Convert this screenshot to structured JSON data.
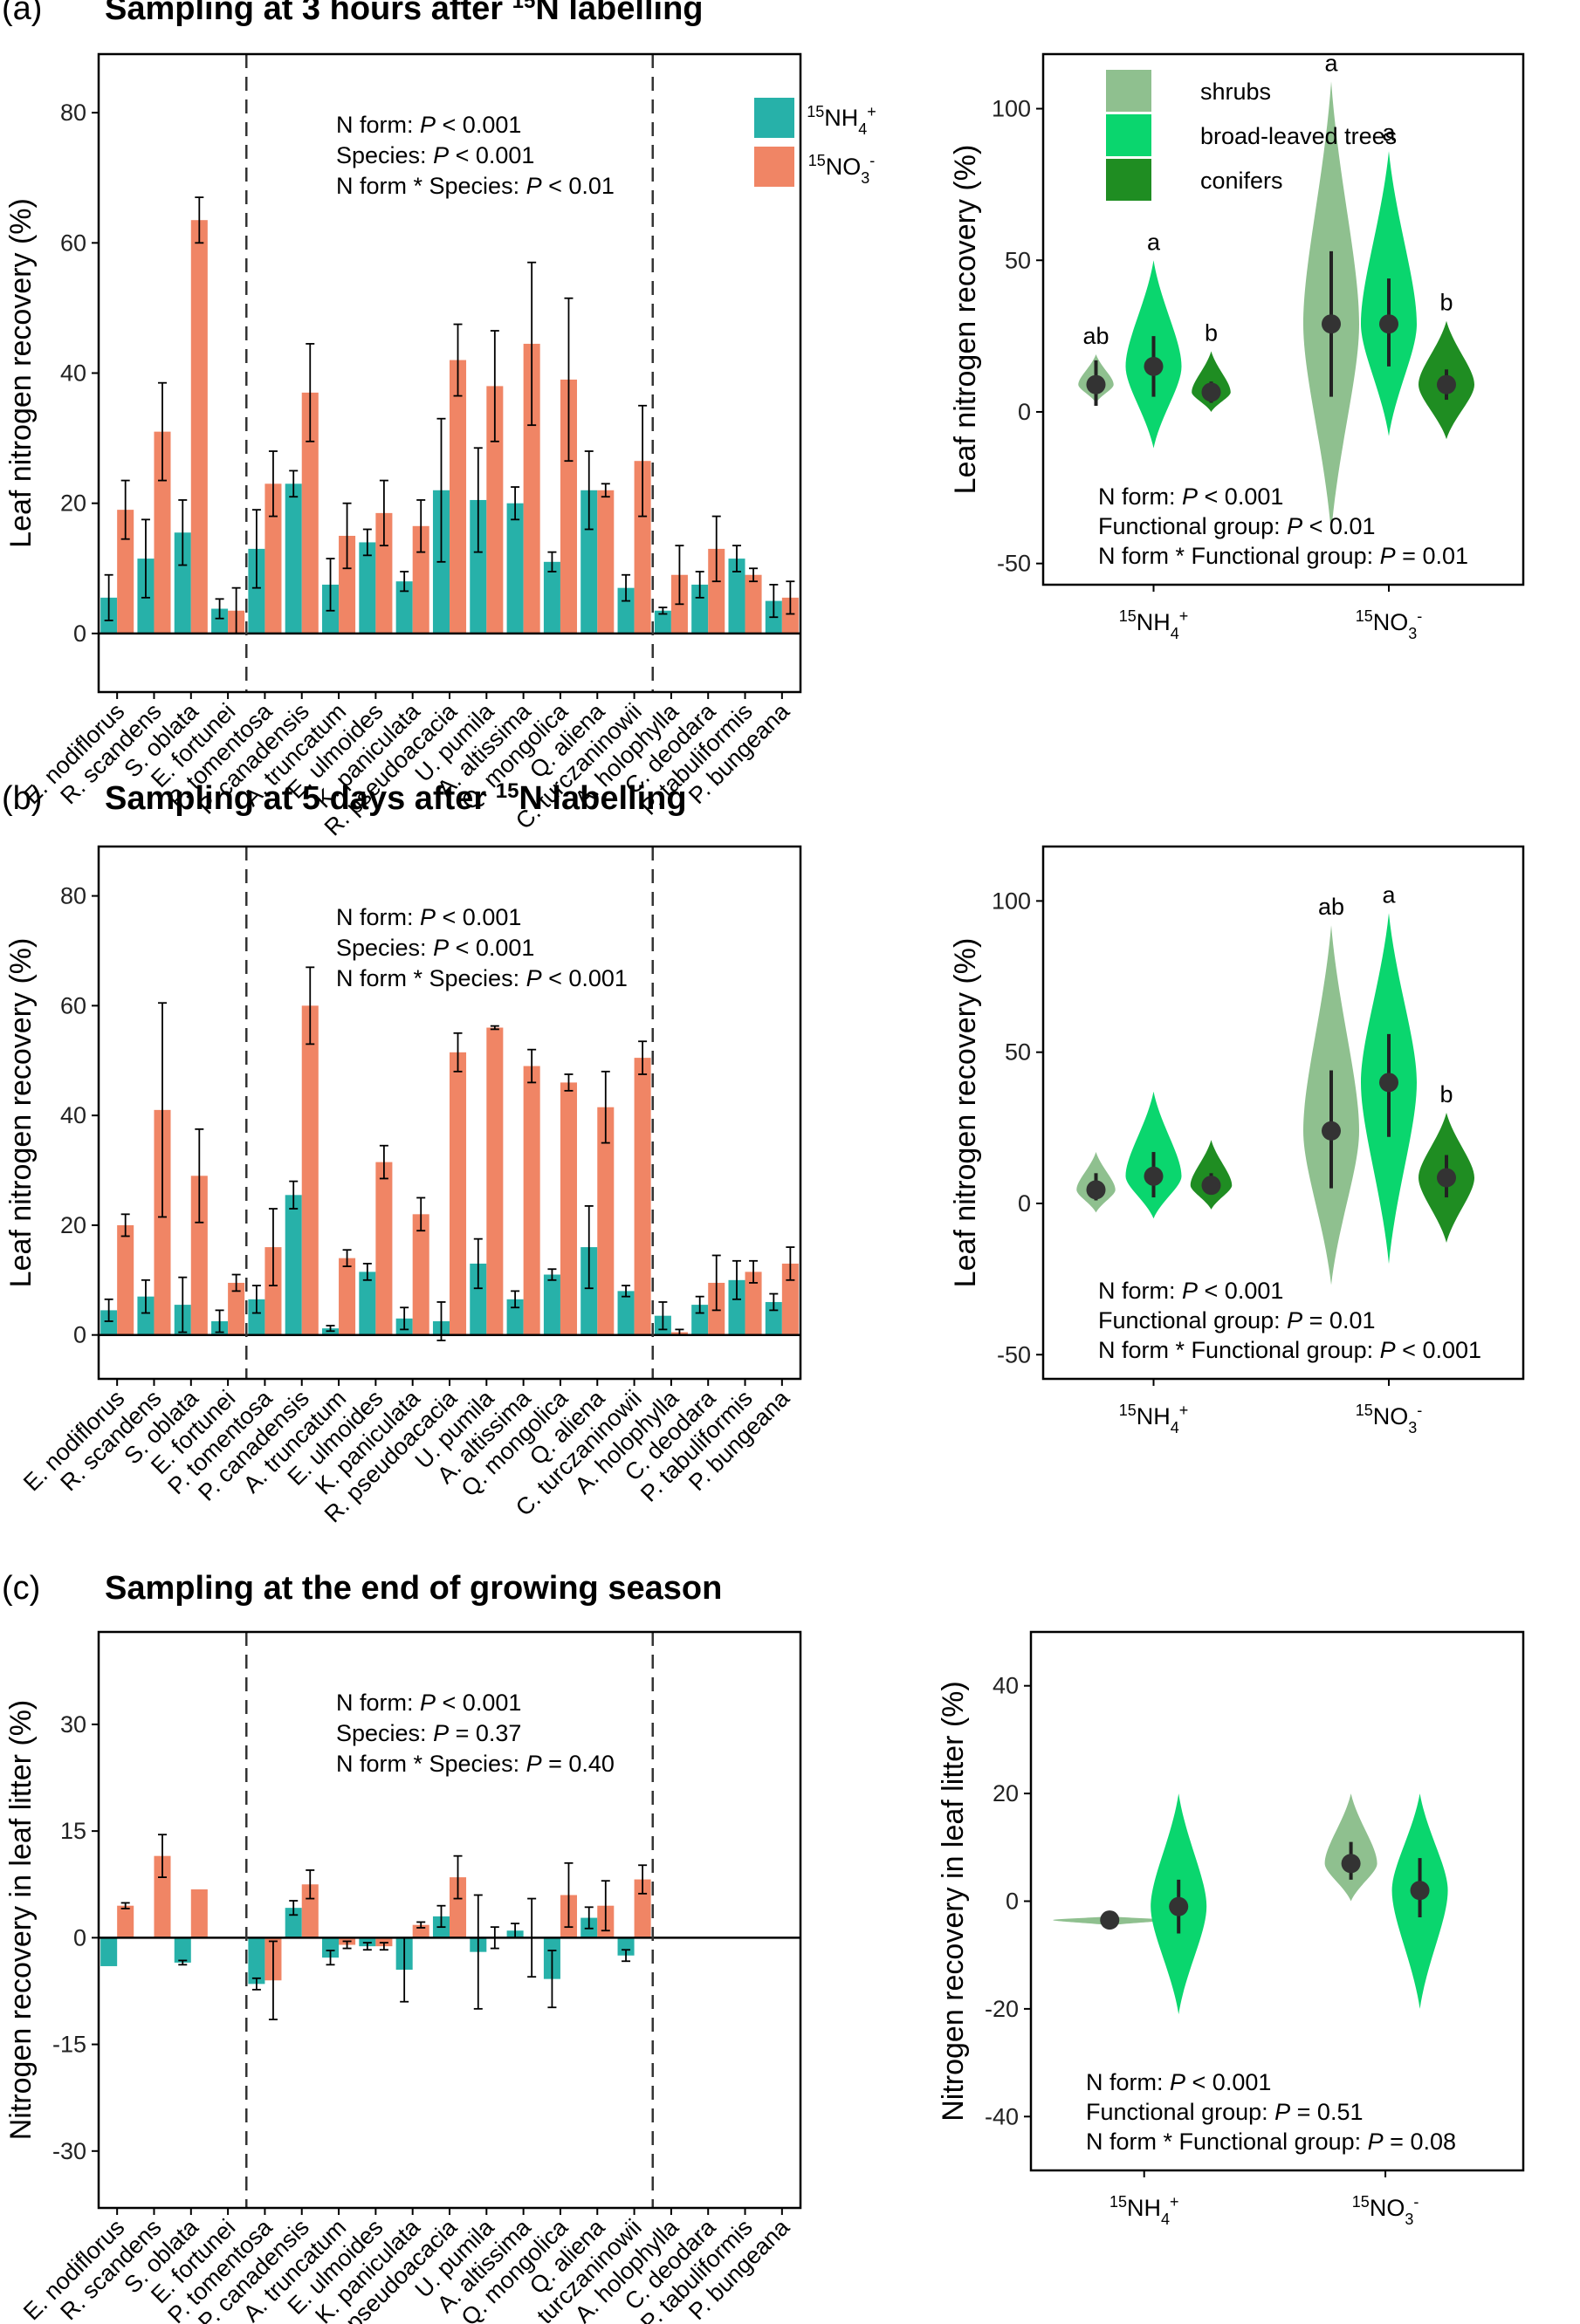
{
  "colors": {
    "nh4": "#27b1a9",
    "no3": "#f08565",
    "shrubs": "#8fc08f",
    "broadleaved": "#0ad66e",
    "conifers": "#1f8d22",
    "median_point": "#333333"
  },
  "species": [
    "E. nodiflorus",
    "R. scandens",
    "S. oblata",
    "E. fortunei",
    "P. tomentosa",
    "P. canadensis",
    "A. truncatum",
    "E. ulmoides",
    "K. paniculata",
    "R. pseudoacacia",
    "U. pumila",
    "A. altissima",
    "Q. mongolica",
    "Q. aliena",
    "C. turczaninowii",
    "A. holophylla",
    "C. deodara",
    "P. tabuliformis",
    "P. bungeana"
  ],
  "nform_labels": [
    {
      "iso": "15",
      "base": "NH",
      "sub": "4",
      "sup": "+"
    },
    {
      "iso": "15",
      "base": "NO",
      "sub": "3",
      "sup": "-"
    }
  ],
  "legend_groups": [
    "shrubs",
    "broad-leaved trees",
    "conifers"
  ],
  "panels": [
    {
      "label": "(a)",
      "title_main": "Sampling at 3 hours after ",
      "title_iso": "15",
      "title_rest": "N labelling",
      "ylabel": "Leaf nitrogen recovery (%)",
      "show_legend": true,
      "bar_stats": [
        {
          "label": "N form: ",
          "p": "P",
          "value": " < 0.001"
        },
        {
          "label": "Species: ",
          "p": "P",
          "value": " < 0.001"
        },
        {
          "label": "N form * Species: ",
          "p": "P",
          "value": " < 0.01"
        }
      ],
      "violin_stats": [
        {
          "label": "N form: ",
          "p": "P",
          "value": " < 0.001"
        },
        {
          "label": "Functional group: ",
          "p": "P",
          "value": " < 0.01"
        },
        {
          "label": "N form * Functional group: ",
          "p": "P",
          "value": " = 0.01"
        }
      ]
    },
    {
      "label": "(b)",
      "title_main": "Sampling at 5 days after ",
      "title_iso": "15",
      "title_rest": "N labelling",
      "ylabel": "Leaf nitrogen recovery (%)",
      "show_legend": false,
      "bar_stats": [
        {
          "label": "N form: ",
          "p": "P",
          "value": " < 0.001"
        },
        {
          "label": "Species: ",
          "p": "P",
          "value": " < 0.001"
        },
        {
          "label": "N form * Species: ",
          "p": "P",
          "value": " < 0.001"
        }
      ],
      "violin_stats": [
        {
          "label": "N form: ",
          "p": "P",
          "value": " < 0.001"
        },
        {
          "label": "Functional group: ",
          "p": "P",
          "value": " = 0.01"
        },
        {
          "label": "N form * Functional group: ",
          "p": "P",
          "value": " < 0.001"
        }
      ]
    },
    {
      "label": "(c)",
      "title_main": "Sampling at the end of growing season",
      "title_iso": "",
      "title_rest": "",
      "ylabel": "Nitrogen recovery in leaf litter (%)",
      "show_legend": false,
      "bar_stats": [
        {
          "label": "N form: ",
          "p": "P",
          "value": " < 0.001"
        },
        {
          "label": "Species: ",
          "p": "P",
          "value": " = 0.37"
        },
        {
          "label": "N form * Species: ",
          "p": "P",
          "value": " = 0.40"
        }
      ],
      "violin_stats": [
        {
          "label": "N form: ",
          "p": "P",
          "value": " < 0.001"
        },
        {
          "label": "Functional group: ",
          "p": "P",
          "value": " = 0.51"
        },
        {
          "label": "N form * Functional group: ",
          "p": "P",
          "value": " = 0.08"
        }
      ]
    }
  ],
  "chart_data": [
    {
      "type": "bar",
      "panel": "(a)",
      "categories": [
        "E. nodiflorus",
        "R. scandens",
        "S. oblata",
        "E. fortunei",
        "P. tomentosa",
        "P. canadensis",
        "A. truncatum",
        "E. ulmoides",
        "K. paniculata",
        "R. pseudoacacia",
        "U. pumila",
        "A. altissima",
        "Q. mongolica",
        "Q. aliena",
        "C. turczaninowii",
        "A. holophylla",
        "C. deodara",
        "P. tabuliformis",
        "P. bungeana"
      ],
      "ylabel": "Leaf nitrogen recovery (%)",
      "ylim": [
        -9,
        89
      ],
      "yticks": [
        0,
        20,
        40,
        60,
        80
      ],
      "group_dividers_after": [
        4,
        15
      ],
      "series": [
        {
          "name": "15NH4+",
          "values": [
            5.5,
            11.5,
            15.5,
            3.8,
            13,
            23,
            7.5,
            14,
            8,
            22,
            20.5,
            20,
            11,
            22,
            7,
            3.5,
            7.5,
            11.5,
            5
          ],
          "errors": [
            3.5,
            6,
            5,
            1.5,
            6,
            2,
            4,
            2,
            1.5,
            11,
            8,
            2.5,
            1.5,
            6,
            2,
            0.5,
            2,
            2,
            2.5
          ]
        },
        {
          "name": "15NO3-",
          "values": [
            19,
            31,
            63.5,
            3.5,
            23,
            37,
            15,
            18.5,
            16.5,
            42,
            38,
            44.5,
            39,
            22,
            26.5,
            9,
            13,
            9,
            5.5
          ],
          "errors": [
            4.5,
            7.5,
            3.5,
            3.5,
            5,
            7.5,
            5,
            5,
            4,
            5.5,
            8.5,
            12.5,
            12.5,
            1,
            8.5,
            4.5,
            5,
            1,
            2.5
          ]
        }
      ]
    },
    {
      "type": "bar",
      "panel": "(b)",
      "categories": [
        "E. nodiflorus",
        "R. scandens",
        "S. oblata",
        "E. fortunei",
        "P. tomentosa",
        "P. canadensis",
        "A. truncatum",
        "E. ulmoides",
        "K. paniculata",
        "R. pseudoacacia",
        "U. pumila",
        "A. altissima",
        "Q. mongolica",
        "Q. aliena",
        "C. turczaninowii",
        "A. holophylla",
        "C. deodara",
        "P. tabuliformis",
        "P. bungeana"
      ],
      "ylabel": "Leaf nitrogen recovery (%)",
      "ylim": [
        -8,
        89
      ],
      "yticks": [
        0,
        20,
        40,
        60,
        80
      ],
      "group_dividers_after": [
        4,
        15
      ],
      "series": [
        {
          "name": "15NH4+",
          "values": [
            4.5,
            7,
            5.5,
            2.5,
            6.5,
            25.5,
            1.2,
            11.5,
            3,
            2.5,
            13,
            6.5,
            11,
            16,
            8,
            3.5,
            5.5,
            10,
            6
          ],
          "errors": [
            2,
            3,
            5,
            2,
            2.5,
            2.5,
            0.5,
            1.5,
            2,
            3.5,
            4.5,
            1.5,
            1,
            7.5,
            1,
            2.5,
            1.5,
            3.5,
            1.5
          ]
        },
        {
          "name": "15NO3-",
          "values": [
            20,
            41,
            29,
            9.5,
            16,
            60,
            14,
            31.5,
            22,
            51.5,
            56,
            49,
            46,
            41.5,
            50.5,
            0.5,
            9.5,
            11.5,
            13
          ],
          "errors": [
            2,
            19.5,
            8.5,
            1.5,
            7,
            7,
            1.5,
            3,
            3,
            3.5,
            0.3,
            3,
            1.5,
            6.5,
            3,
            0.5,
            5,
            2,
            3
          ]
        }
      ]
    },
    {
      "type": "bar",
      "panel": "(c)",
      "categories": [
        "E. nodiflorus",
        "R. scandens",
        "S. oblata",
        "E. fortunei",
        "P. tomentosa",
        "P. canadensis",
        "A. truncatum",
        "E. ulmoides",
        "K. paniculata",
        "R. pseudoacacia",
        "U. pumila",
        "A. altissima",
        "Q. mongolica",
        "Q. aliena",
        "C. turczaninowii",
        "A. holophylla",
        "C. deodara",
        "P. tabuliformis",
        "P. bungeana"
      ],
      "ylabel": "Nitrogen recovery in leaf litter (%)",
      "ylim": [
        -38,
        43
      ],
      "yticks": [
        -30,
        -15,
        0,
        15,
        30
      ],
      "group_dividers_after": [
        4,
        15
      ],
      "series": [
        {
          "name": "15NH4+",
          "values": [
            -4,
            null,
            -3.5,
            null,
            -6.5,
            4.2,
            -2.8,
            -1.2,
            -4.5,
            3,
            -2,
            1,
            -5.8,
            2.8,
            -2.5,
            null,
            null,
            null,
            null
          ],
          "errors": [
            0,
            0,
            0.3,
            0,
            0.8,
            1,
            1,
            0.5,
            4.5,
            1.5,
            8,
            1,
            4,
            1.5,
            0.8,
            0,
            0,
            0,
            0
          ]
        },
        {
          "name": "15NO3-",
          "values": [
            4.5,
            11.5,
            6.8,
            null,
            -6,
            7.5,
            -1,
            -1.2,
            1.8,
            8.5,
            0,
            0,
            6,
            4.5,
            8.2,
            null,
            null,
            null,
            null
          ],
          "errors": [
            0.4,
            3,
            0,
            0,
            5.5,
            2,
            0.5,
            0.5,
            0.4,
            3,
            1.5,
            5.5,
            4.5,
            3.5,
            2,
            0,
            0,
            0,
            0
          ]
        }
      ]
    },
    {
      "type": "violin",
      "panel": "(a)",
      "categories": [
        "15NH4+",
        "15NO3-"
      ],
      "groups": [
        "shrubs",
        "broad-leaved trees",
        "conifers"
      ],
      "ylabel": "Leaf nitrogen recovery (%)",
      "ylim": [
        -57,
        118
      ],
      "yticks": [
        -50,
        0,
        50,
        100
      ],
      "series": [
        {
          "name": "shrubs",
          "medians": [
            9,
            29
          ],
          "ranges": [
            [
              3,
              19
            ],
            [
              -40,
              109
            ]
          ],
          "iqr": [
            [
              2,
              17
            ],
            [
              5,
              53
            ]
          ],
          "letters": [
            "ab",
            "a"
          ]
        },
        {
          "name": "broad-leaved trees",
          "medians": [
            15,
            29
          ],
          "ranges": [
            [
              -12,
              50
            ],
            [
              -8,
              86
            ]
          ],
          "iqr": [
            [
              5,
              25
            ],
            [
              15,
              44
            ]
          ],
          "letters": [
            "a",
            "a"
          ]
        },
        {
          "name": "conifers",
          "medians": [
            6.5,
            9
          ],
          "ranges": [
            [
              0,
              20
            ],
            [
              -9,
              30
            ]
          ],
          "iqr": [
            [
              3,
              10
            ],
            [
              4,
              14
            ]
          ],
          "letters": [
            "b",
            "b"
          ]
        }
      ]
    },
    {
      "type": "violin",
      "panel": "(b)",
      "categories": [
        "15NH4+",
        "15NO3-"
      ],
      "groups": [
        "shrubs",
        "broad-leaved trees",
        "conifers"
      ],
      "ylabel": "Leaf nitrogen recovery (%)",
      "ylim": [
        -58,
        118
      ],
      "yticks": [
        -50,
        0,
        50,
        100
      ],
      "series": [
        {
          "name": "shrubs",
          "medians": [
            4.5,
            24
          ],
          "ranges": [
            [
              -3,
              17
            ],
            [
              -27,
              92
            ]
          ],
          "iqr": [
            [
              1,
              10
            ],
            [
              5,
              44
            ]
          ],
          "letters": [
            "",
            "ab"
          ]
        },
        {
          "name": "broad-leaved trees",
          "medians": [
            9,
            40
          ],
          "ranges": [
            [
              -5,
              37
            ],
            [
              -20,
              96
            ]
          ],
          "iqr": [
            [
              2,
              17
            ],
            [
              22,
              56
            ]
          ],
          "letters": [
            "",
            "a"
          ]
        },
        {
          "name": "conifers",
          "medians": [
            6,
            8.5
          ],
          "ranges": [
            [
              -2,
              21
            ],
            [
              -13,
              30
            ]
          ],
          "iqr": [
            [
              3,
              10
            ],
            [
              2,
              16
            ]
          ],
          "letters": [
            "",
            "b"
          ]
        }
      ]
    },
    {
      "type": "violin",
      "panel": "(c)",
      "categories": [
        "15NH4+",
        "15NO3-"
      ],
      "groups": [
        "shrubs",
        "broad-leaved trees"
      ],
      "ylabel": "Nitrogen recovery in leaf litter (%)",
      "ylim": [
        -50,
        50
      ],
      "yticks": [
        -40,
        -20,
        0,
        20,
        40
      ],
      "series": [
        {
          "name": "shrubs",
          "medians": [
            -3.5,
            7
          ],
          "ranges": [
            [
              -4.5,
              -2.8
            ],
            [
              0,
              20
            ]
          ],
          "iqr": [
            [
              -3.8,
              -3.2
            ],
            [
              4,
              11
            ]
          ],
          "letters": [
            "",
            ""
          ]
        },
        {
          "name": "broad-leaved trees",
          "medians": [
            -1,
            2
          ],
          "ranges": [
            [
              -21,
              20
            ],
            [
              -20,
              20
            ]
          ],
          "iqr": [
            [
              -6,
              4
            ],
            [
              -3,
              8
            ]
          ],
          "letters": [
            "",
            ""
          ]
        }
      ]
    }
  ]
}
